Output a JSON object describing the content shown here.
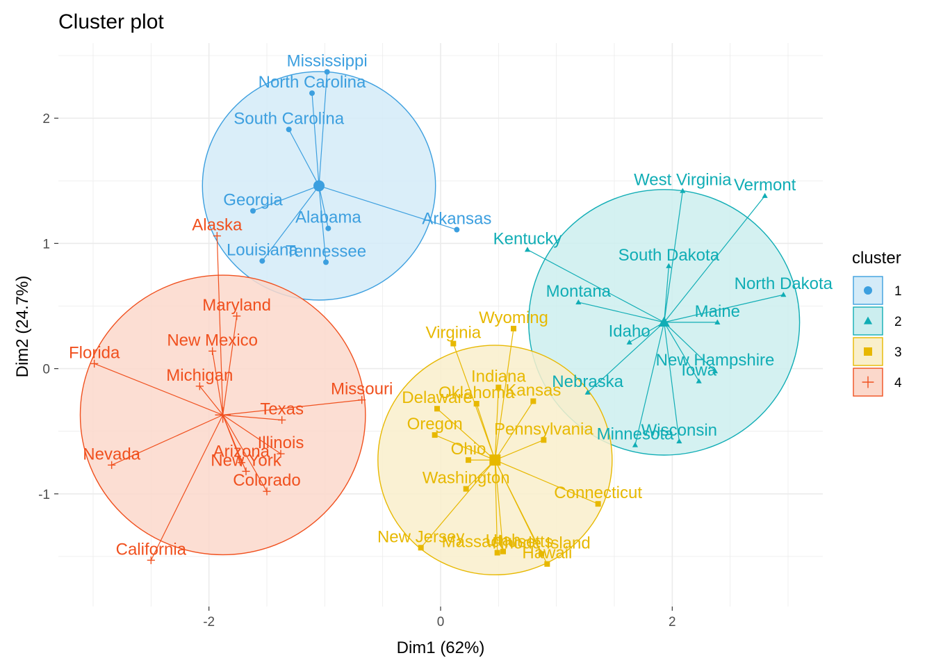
{
  "chart_data": {
    "type": "scatter",
    "title": "Cluster plot",
    "xlabel": "Dim1 (62%)",
    "ylabel": "Dim2 (24.7%)",
    "xlim": [
      -3.3,
      3.3
    ],
    "ylim": [
      -1.9,
      2.6
    ],
    "xticks": [
      -2,
      0,
      2
    ],
    "yticks": [
      -1,
      0,
      1,
      2
    ],
    "xtick_labels": [
      "-2",
      "0",
      "2"
    ],
    "ytick_labels": [
      "-1",
      "0",
      "1",
      "2"
    ],
    "grid": true,
    "legend": {
      "title": "cluster",
      "position": "right",
      "entries": [
        "1",
        "2",
        "3",
        "4"
      ]
    },
    "series": [
      {
        "name": "1",
        "marker": "circle",
        "color": "#3c9fdf",
        "fill": "#d4ebf8",
        "centroid": [
          -1.05,
          1.46
        ],
        "points": [
          {
            "label": "Mississippi",
            "x": -0.98,
            "y": 2.37
          },
          {
            "label": "North Carolina",
            "x": -1.11,
            "y": 2.2
          },
          {
            "label": "South Carolina",
            "x": -1.31,
            "y": 1.91
          },
          {
            "label": "Georgia",
            "x": -1.62,
            "y": 1.26
          },
          {
            "label": "Arkansas",
            "x": 0.14,
            "y": 1.11
          },
          {
            "label": "Alabama",
            "x": -0.97,
            "y": 1.12
          },
          {
            "label": "Louisiana",
            "x": -1.54,
            "y": 0.86
          },
          {
            "label": "Tennessee",
            "x": -0.99,
            "y": 0.85
          }
        ]
      },
      {
        "name": "2",
        "marker": "triangle",
        "color": "#10adb5",
        "fill": "#cceeef",
        "centroid": [
          1.93,
          0.37
        ],
        "points": [
          {
            "label": "West Virginia",
            "x": 2.09,
            "y": 1.42
          },
          {
            "label": "Vermont",
            "x": 2.8,
            "y": 1.38
          },
          {
            "label": "Kentucky",
            "x": 0.75,
            "y": 0.95
          },
          {
            "label": "South Dakota",
            "x": 1.97,
            "y": 0.82
          },
          {
            "label": "Montana",
            "x": 1.19,
            "y": 0.53
          },
          {
            "label": "North Dakota",
            "x": 2.96,
            "y": 0.59
          },
          {
            "label": "Idaho",
            "x": 1.63,
            "y": 0.21
          },
          {
            "label": "Maine",
            "x": 2.39,
            "y": 0.37
          },
          {
            "label": "New Hampshire",
            "x": 2.37,
            "y": -0.02
          },
          {
            "label": "Nebraska",
            "x": 1.27,
            "y": -0.19
          },
          {
            "label": "Iowa",
            "x": 2.23,
            "y": -0.1
          },
          {
            "label": "Wisconsin",
            "x": 2.06,
            "y": -0.58
          },
          {
            "label": "Minnesota",
            "x": 1.68,
            "y": -0.61
          }
        ]
      },
      {
        "name": "3",
        "marker": "square",
        "color": "#e7b800",
        "fill": "#f9efcb",
        "centroid": [
          0.47,
          -0.73
        ],
        "points": [
          {
            "label": "Wyoming",
            "x": 0.63,
            "y": 0.32
          },
          {
            "label": "Virginia",
            "x": 0.11,
            "y": 0.2
          },
          {
            "label": "Indiana",
            "x": 0.5,
            "y": -0.15
          },
          {
            "label": "Delaware",
            "x": -0.03,
            "y": -0.32
          },
          {
            "label": "Kansas",
            "x": 0.8,
            "y": -0.26
          },
          {
            "label": "Oklahoma",
            "x": 0.31,
            "y": -0.28
          },
          {
            "label": "Oregon",
            "x": -0.05,
            "y": -0.53
          },
          {
            "label": "Pennsylvania",
            "x": 0.89,
            "y": -0.57
          },
          {
            "label": "Ohio",
            "x": 0.24,
            "y": -0.73
          },
          {
            "label": "Washington",
            "x": 0.22,
            "y": -0.96
          },
          {
            "label": "Connecticut",
            "x": 1.36,
            "y": -1.08
          },
          {
            "label": "New Jersey",
            "x": -0.17,
            "y": -1.43
          },
          {
            "label": "Utah",
            "x": 0.54,
            "y": -1.46
          },
          {
            "label": "Rhode Island",
            "x": 0.87,
            "y": -1.48
          },
          {
            "label": "Massachusetts",
            "x": 0.49,
            "y": -1.47
          },
          {
            "label": "Hawaii",
            "x": 0.92,
            "y": -1.56
          }
        ]
      },
      {
        "name": "4",
        "marker": "plus",
        "color": "#f0501e",
        "fill": "#fbd8cb",
        "centroid": [
          -1.88,
          -0.37
        ],
        "points": [
          {
            "label": "Alaska",
            "x": -1.93,
            "y": 1.06
          },
          {
            "label": "Maryland",
            "x": -1.76,
            "y": 0.42
          },
          {
            "label": "New Mexico",
            "x": -1.97,
            "y": 0.14
          },
          {
            "label": "Florida",
            "x": -2.99,
            "y": 0.04
          },
          {
            "label": "Michigan",
            "x": -2.08,
            "y": -0.14
          },
          {
            "label": "Missouri",
            "x": -0.68,
            "y": -0.25
          },
          {
            "label": "Texas",
            "x": -1.37,
            "y": -0.41
          },
          {
            "label": "Illinois",
            "x": -1.38,
            "y": -0.68
          },
          {
            "label": "Arizona",
            "x": -1.72,
            "y": -0.75
          },
          {
            "label": "New York",
            "x": -1.68,
            "y": -0.82
          },
          {
            "label": "Nevada",
            "x": -2.84,
            "y": -0.77
          },
          {
            "label": "Colorado",
            "x": -1.5,
            "y": -0.98
          },
          {
            "label": "California",
            "x": -2.5,
            "y": -1.53
          }
        ]
      }
    ]
  }
}
